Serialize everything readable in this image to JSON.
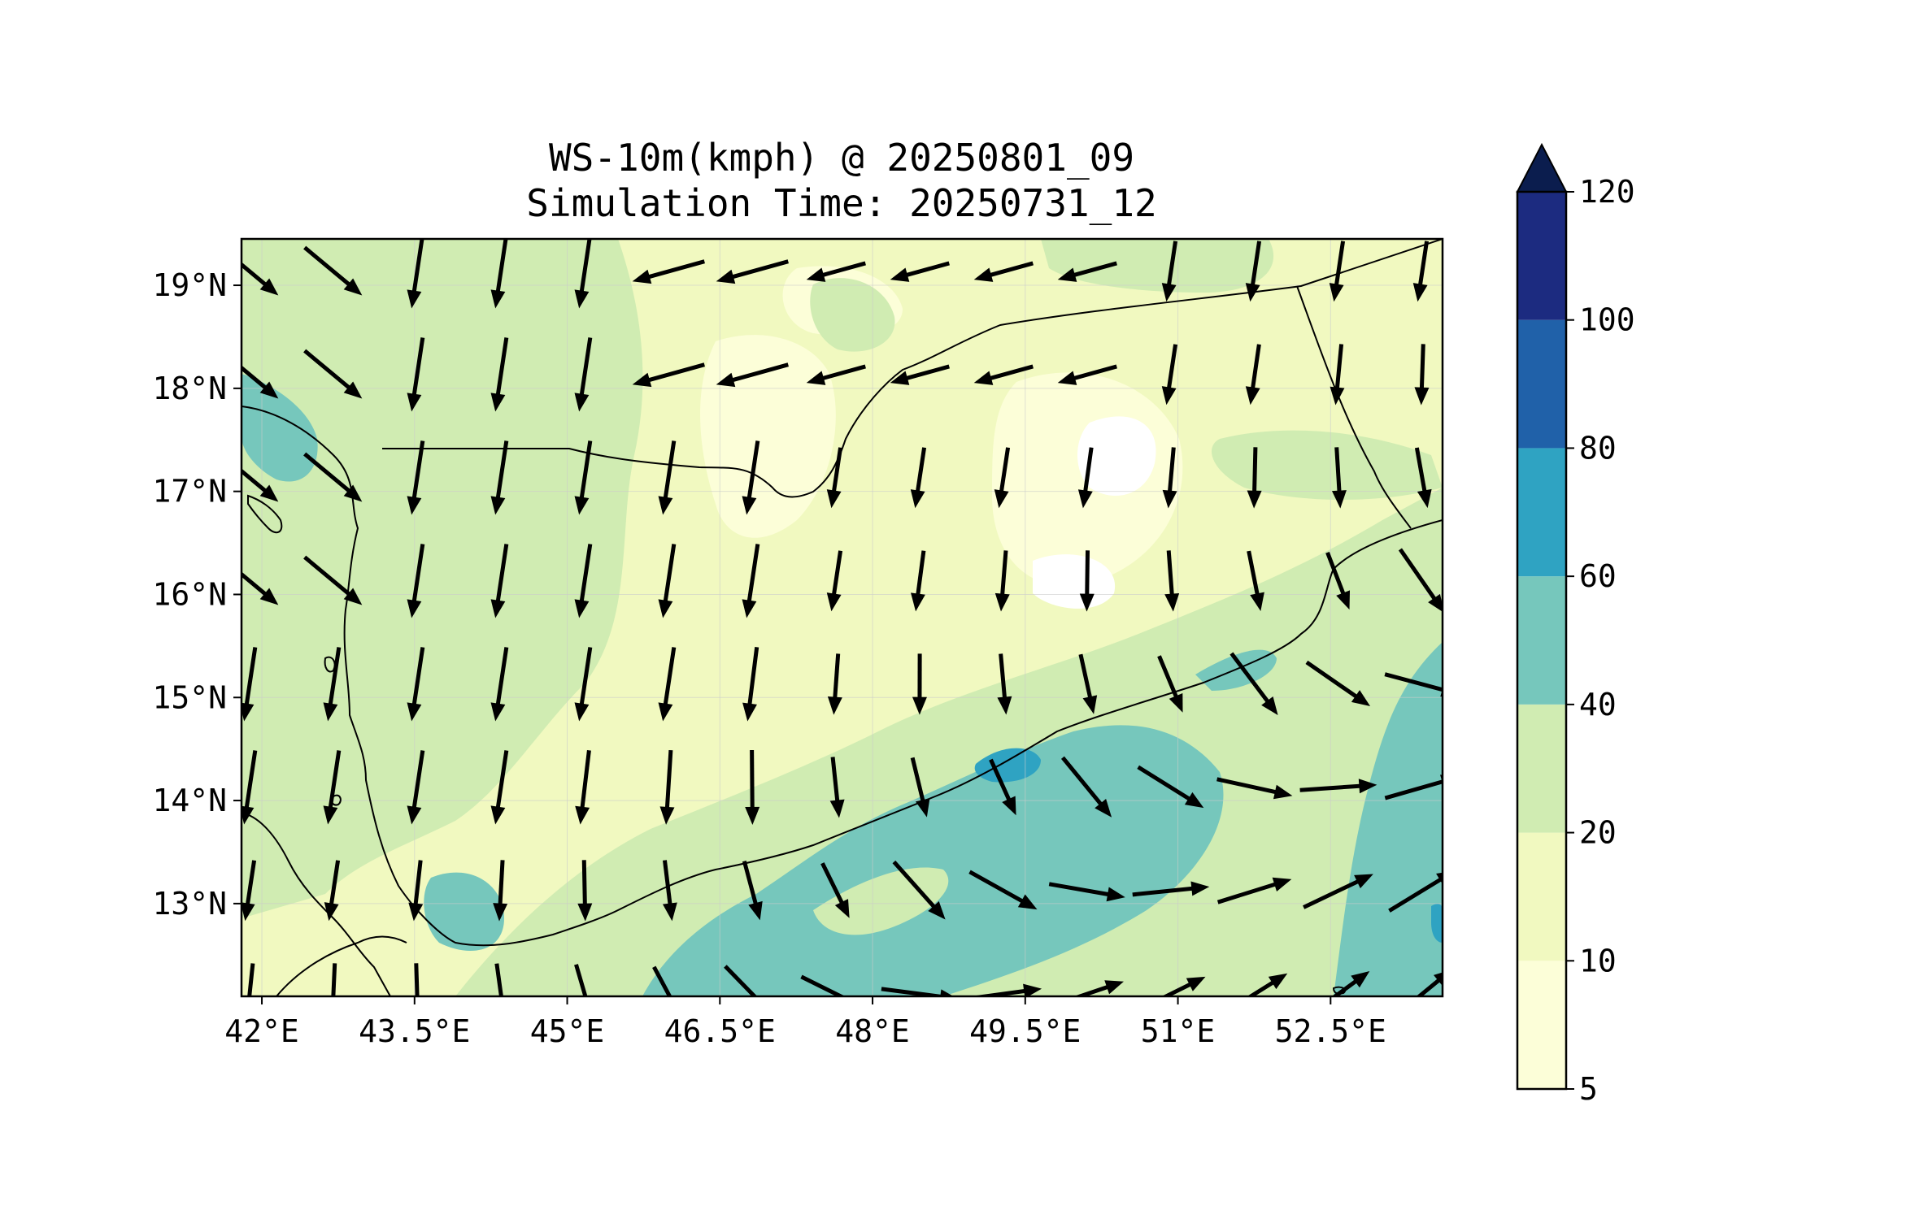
{
  "title": {
    "line1": "WS-10m(kmph) @ 20250801_09",
    "line2": "Simulation Time: 20250731_12"
  },
  "map": {
    "lon_range": [
      41.8,
      53.6
    ],
    "lat_range": [
      12.1,
      19.45
    ],
    "x_ticks": [
      {
        "value": 42.0,
        "label": "42°E"
      },
      {
        "value": 43.5,
        "label": "43.5°E"
      },
      {
        "value": 45.0,
        "label": "45°E"
      },
      {
        "value": 46.5,
        "label": "46.5°E"
      },
      {
        "value": 48.0,
        "label": "48°E"
      },
      {
        "value": 49.5,
        "label": "49.5°E"
      },
      {
        "value": 51.0,
        "label": "51°E"
      },
      {
        "value": 52.5,
        "label": "52.5°E"
      }
    ],
    "y_ticks": [
      {
        "value": 19,
        "label": "19°N"
      },
      {
        "value": 18,
        "label": "18°N"
      },
      {
        "value": 17,
        "label": "17°N"
      },
      {
        "value": 16,
        "label": "16°N"
      },
      {
        "value": 15,
        "label": "15°N"
      },
      {
        "value": 14,
        "label": "14°N"
      },
      {
        "value": 13,
        "label": "13°N"
      }
    ],
    "gridlines": true
  },
  "colorbar": {
    "levels": [
      {
        "value": 5,
        "label": "5"
      },
      {
        "value": 10,
        "label": "10"
      },
      {
        "value": 20,
        "label": "20"
      },
      {
        "value": 40,
        "label": "40"
      },
      {
        "value": 60,
        "label": "60"
      },
      {
        "value": 80,
        "label": "80"
      },
      {
        "value": 100,
        "label": "100"
      },
      {
        "value": 120,
        "label": "120"
      }
    ],
    "colors": [
      "#fcfed8",
      "#f1f9c0",
      "#d0ecb2",
      "#76c7bc",
      "#2fa3c2",
      "#2061a9",
      "#1c2b80"
    ],
    "extend_color": "#0b1d4e"
  },
  "colors": {
    "background": "#ffffff",
    "land_base": "#f1f9c0",
    "lowest": "#fcfed8",
    "band_20_40": "#d0ecb2",
    "band_40_60": "#76c7bc",
    "band_60_80": "#2fa3c2",
    "vectors": "#000000",
    "coastline": "#000000",
    "gridline": "#cccccc"
  }
}
